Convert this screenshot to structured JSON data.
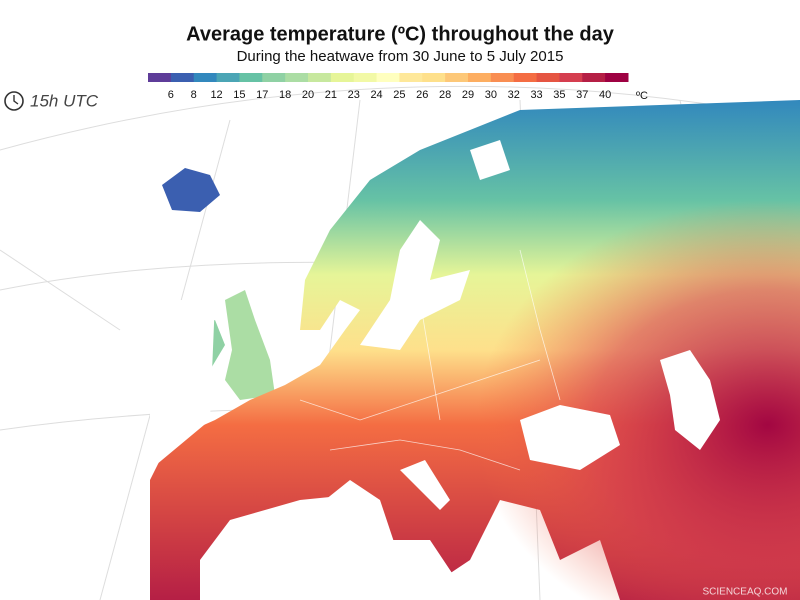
{
  "title": "Average temperature (ºC) throughout the day",
  "subtitle": "During the heatwave from 30 June to 5 July 2015",
  "time_label": "15h  UTC",
  "legend": {
    "labels": [
      6,
      8,
      12,
      15,
      17,
      18,
      20,
      21,
      23,
      24,
      25,
      26,
      28,
      29,
      30,
      32,
      33,
      35,
      37,
      40
    ],
    "colors": [
      "#5e3c99",
      "#3b5fb0",
      "#3288bd",
      "#4ba5b5",
      "#66c2a5",
      "#8fd1a4",
      "#abdda4",
      "#c7e89e",
      "#e6f598",
      "#f2f9a6",
      "#ffffbf",
      "#fee89a",
      "#fee08b",
      "#fdc878",
      "#fdae61",
      "#f98e52",
      "#f46d43",
      "#e55542",
      "#d53e4f",
      "#b51f45",
      "#9e0142"
    ],
    "unit": "ºC"
  },
  "watermark": "SCIENCEAQ.COM"
}
